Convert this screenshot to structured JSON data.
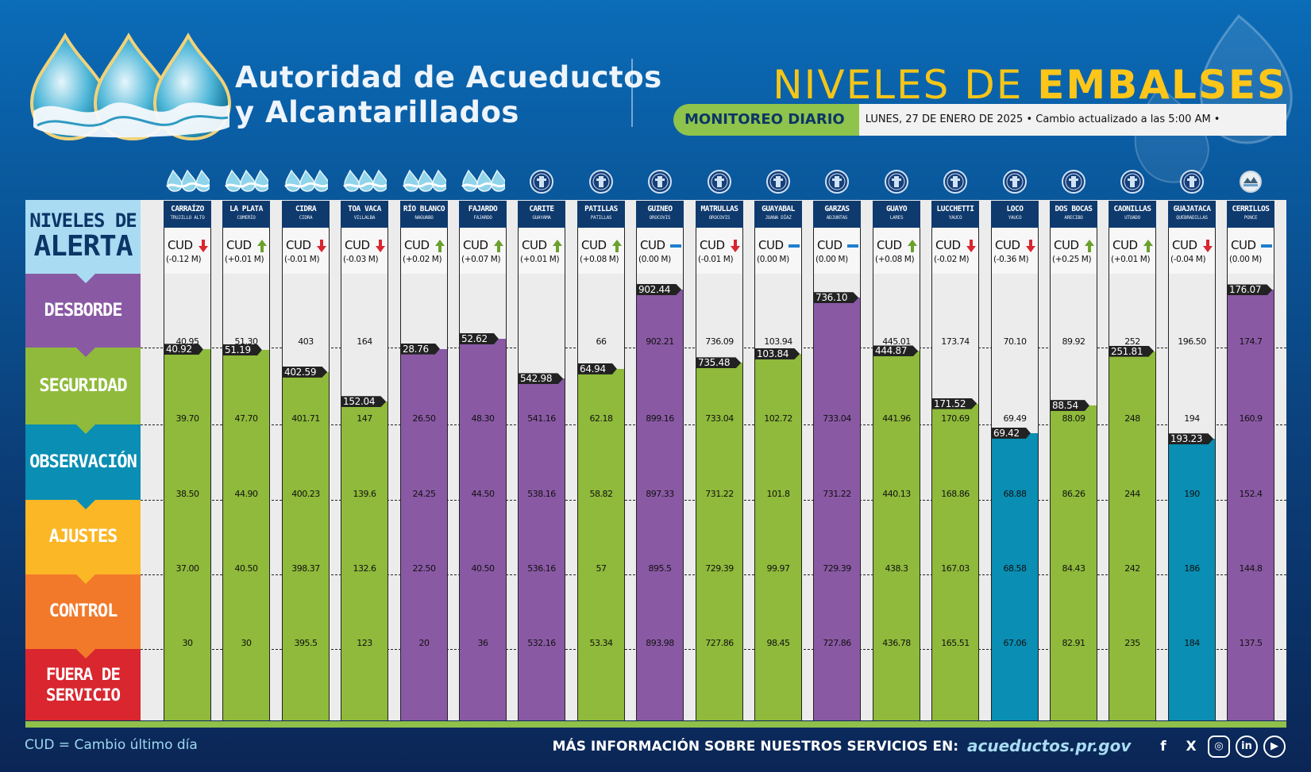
{
  "header": {
    "org_line1": "Autoridad de Acueductos",
    "org_line2": "y Alcantarillados",
    "title_part1": "NIVELES DE ",
    "title_part2": "EMBALSES",
    "monitor_label": "MONITOREO DIARIO",
    "monitor_info": "LUNES, 27 DE ENERO DE 2025 • Cambio actualizado a las 5:00 AM •"
  },
  "legend": {
    "title_line1": "NIVELES DE",
    "title_line2": "ALERTA",
    "levels": [
      {
        "label": "DESBORDE",
        "color": "#8a59a4"
      },
      {
        "label": "SEGURIDAD",
        "color": "#8fba3b"
      },
      {
        "label": "OBSERVACIÓN",
        "color": "#0a8eb3"
      },
      {
        "label": "AJUSTES",
        "color": "#fbb725"
      },
      {
        "label": "CONTROL",
        "color": "#f3792a"
      },
      {
        "label": "FUERA DE SERVICIO",
        "color": "#d9262f"
      }
    ]
  },
  "colors": {
    "purple": "#8a59a4",
    "green": "#8fba3b",
    "blue": "#0a8eb3",
    "arrow_up": "#6aa12d",
    "arrow_down": "#d9262f",
    "arrow_flat": "#1f7fce"
  },
  "cud_label": "CUD",
  "chart_data": {
    "type": "bar",
    "series": [
      {
        "name": "CARRAÍZO",
        "location": "TRUJILLO ALTO",
        "icon": "water-waves-icon",
        "level": 40.92,
        "cud": "(-0.12 M)",
        "trend": "down",
        "fill": "green",
        "thresholds": [
          "40.95",
          "39.70",
          "38.50",
          "37.00",
          "30"
        ]
      },
      {
        "name": "LA PLATA",
        "location": "COMERÍO",
        "icon": "water-waves-icon",
        "level": 51.19,
        "cud": "(+0.01 M)",
        "trend": "up",
        "fill": "green",
        "thresholds": [
          "51.30",
          "47.70",
          "44.90",
          "40.50",
          "30"
        ]
      },
      {
        "name": "CIDRA",
        "location": "CIDRA",
        "icon": "water-waves-icon",
        "level": 402.59,
        "cud": "(-0.01 M)",
        "trend": "down",
        "fill": "green",
        "thresholds": [
          "403",
          "401.71",
          "400.23",
          "398.37",
          "395.5"
        ]
      },
      {
        "name": "TOA VACA",
        "location": "VILLALBA",
        "icon": "water-waves-icon",
        "level": 152.04,
        "cud": "(-0.03 M)",
        "trend": "down",
        "fill": "green",
        "thresholds": [
          "164",
          "147",
          "139.6",
          "132.6",
          "123"
        ]
      },
      {
        "name": "RÍO BLANCO",
        "location": "NAGUABO",
        "icon": "water-waves-icon",
        "level": 28.76,
        "cud": "(+0.02 M)",
        "trend": "up",
        "fill": "purple",
        "thresholds": [
          "",
          "26.50",
          "24.25",
          "22.50",
          "20"
        ]
      },
      {
        "name": "FAJARDO",
        "location": "FAJARDO",
        "icon": "water-waves-icon",
        "level": 52.62,
        "cud": "(+0.07 M)",
        "trend": "up",
        "fill": "purple",
        "thresholds": [
          "",
          "48.30",
          "44.50",
          "40.50",
          "36"
        ]
      },
      {
        "name": "CARITE",
        "location": "GUAYAMA",
        "icon": "seal-icon",
        "level": 542.98,
        "cud": "(+0.01 M)",
        "trend": "up",
        "fill": "purple",
        "thresholds": [
          "",
          "541.16",
          "538.16",
          "536.16",
          "532.16"
        ]
      },
      {
        "name": "PATILLAS",
        "location": "PATILLAS",
        "icon": "seal-icon",
        "level": 64.94,
        "cud": "(+0.08 M)",
        "trend": "up",
        "fill": "green",
        "thresholds": [
          "66",
          "62.18",
          "58.82",
          "57",
          "53.34"
        ]
      },
      {
        "name": "GUINEO",
        "location": "OROCOVIS",
        "icon": "seal-icon",
        "level": 902.44,
        "cud": "(0.00 M)",
        "trend": "flat",
        "fill": "purple",
        "thresholds": [
          "902.21",
          "899.16",
          "897.33",
          "895.5",
          "893.98"
        ]
      },
      {
        "name": "MATRULLAS",
        "location": "OROCOVIS",
        "icon": "seal-icon",
        "level": 735.48,
        "cud": "(-0.01 M)",
        "trend": "down",
        "fill": "green",
        "thresholds": [
          "736.09",
          "733.04",
          "731.22",
          "729.39",
          "727.86"
        ]
      },
      {
        "name": "GUAYABAL",
        "location": "JUANA DÍAZ",
        "icon": "seal-icon",
        "level": 103.84,
        "cud": "(0.00 M)",
        "trend": "flat",
        "fill": "green",
        "thresholds": [
          "103.94",
          "102.72",
          "101.8",
          "99.97",
          "98.45"
        ]
      },
      {
        "name": "GARZAS",
        "location": "ADJUNTAS",
        "icon": "seal-icon",
        "level": 736.1,
        "cud": "(0.00 M)",
        "trend": "flat",
        "fill": "purple",
        "thresholds": [
          "",
          "733.04",
          "731.22",
          "729.39",
          "727.86"
        ]
      },
      {
        "name": "GUAYO",
        "location": "LARES",
        "icon": "seal-icon",
        "level": 444.87,
        "cud": "(+0.08 M)",
        "trend": "up",
        "fill": "green",
        "thresholds": [
          "445.01",
          "441.96",
          "440.13",
          "438.3",
          "436.78"
        ]
      },
      {
        "name": "LUCCHETTI",
        "location": "YAUCO",
        "icon": "seal-icon",
        "level": 171.52,
        "cud": "(-0.02 M)",
        "trend": "down",
        "fill": "green",
        "thresholds": [
          "173.74",
          "170.69",
          "168.86",
          "167.03",
          "165.51"
        ]
      },
      {
        "name": "LOCO",
        "location": "YAUCO",
        "icon": "seal-icon",
        "level": 69.42,
        "cud": "(-0.36 M)",
        "trend": "down",
        "fill": "blue",
        "thresholds": [
          "70.10",
          "69.49",
          "68.88",
          "68.58",
          "67.06"
        ]
      },
      {
        "name": "DOS BOCAS",
        "location": "ARECIBO",
        "icon": "seal-icon",
        "level": 88.54,
        "cud": "(+0.25 M)",
        "trend": "up",
        "fill": "green",
        "thresholds": [
          "89.92",
          "88.09",
          "86.26",
          "84.43",
          "82.91"
        ]
      },
      {
        "name": "CAONILLAS",
        "location": "UTUADO",
        "icon": "seal-icon",
        "level": 251.81,
        "cud": "(+0.01 M)",
        "trend": "up",
        "fill": "green",
        "thresholds": [
          "252",
          "248",
          "244",
          "242",
          "235"
        ]
      },
      {
        "name": "GUAJATACA",
        "location": "QUEBRADILLAS",
        "icon": "seal-icon",
        "level": 193.23,
        "cud": "(-0.04 M)",
        "trend": "down",
        "fill": "blue",
        "thresholds": [
          "196.50",
          "194",
          "190",
          "186",
          "184"
        ]
      },
      {
        "name": "CERRILLOS",
        "location": "PONCE",
        "icon": "cerrillos-seal-icon",
        "level": 176.07,
        "cud": "(0.00 M)",
        "trend": "flat",
        "fill": "purple",
        "thresholds": [
          "174.7",
          "160.9",
          "152.4",
          "144.8",
          "137.5"
        ]
      }
    ]
  },
  "footer": {
    "cud_note": "CUD = Cambio último día",
    "more_info": "MÁS INFORMACIÓN SOBRE NUESTROS SERVICIOS EN:",
    "url": "acueductos.pr.gov",
    "social": [
      {
        "icon": "facebook-icon",
        "glyph": "f"
      },
      {
        "icon": "x-icon",
        "glyph": "X"
      },
      {
        "icon": "instagram-icon",
        "glyph": "◎"
      },
      {
        "icon": "linkedin-icon",
        "glyph": "in"
      },
      {
        "icon": "youtube-icon",
        "glyph": "▶"
      }
    ]
  }
}
